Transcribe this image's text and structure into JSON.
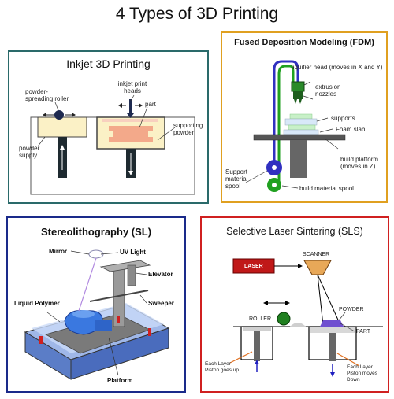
{
  "main_title": "4 Types of 3D Printing",
  "colors": {
    "inkjet_border": "#2a6a6a",
    "fdm_border": "#e0a020",
    "sl_border": "#1a2a8a",
    "sls_border": "#d02020",
    "fdm_support_spool": "#3030c0",
    "fdm_build_spool": "#20a020",
    "sls_laser": "#c01818",
    "sls_scanner": "#e8a858",
    "sls_powder": "#7050d0",
    "sl_polymer": "#3a78e0",
    "sl_platform": "#686868"
  },
  "inkjet": {
    "title": "Inkjet 3D Printing",
    "labels": {
      "roller": "powder-spreading roller",
      "heads": "inkjet print heads",
      "part": "part",
      "supporting": "supporting powder",
      "supply": "powder supply"
    }
  },
  "fdm": {
    "title": "Fused Deposition Modeling (FDM)",
    "labels": {
      "liquifier": "liquifier head (moves in X and Y)",
      "nozzles": "extrusion nozzles",
      "supports": "supports",
      "foam": "Foam slab",
      "platform": "build platform (moves in Z)",
      "support_spool": "Support material spool",
      "build_spool": "build material spool"
    }
  },
  "sl": {
    "title": "Stereolithography (SL)",
    "labels": {
      "mirror": "Mirror",
      "uv": "UV Light",
      "elevator": "Elevator",
      "polymer": "Liquid Polymer",
      "sweeper": "Sweeper",
      "platform": "Platform"
    }
  },
  "sls": {
    "title": "Selective Laser Sintering (SLS)",
    "labels": {
      "laser": "LASER",
      "scanner": "SCANNER",
      "powder": "POWDER",
      "roller": "ROLLER",
      "part": "PART",
      "left_note": "Each Layer Piston goes up.",
      "right_note": "Each Layer Piston moves Down"
    }
  }
}
